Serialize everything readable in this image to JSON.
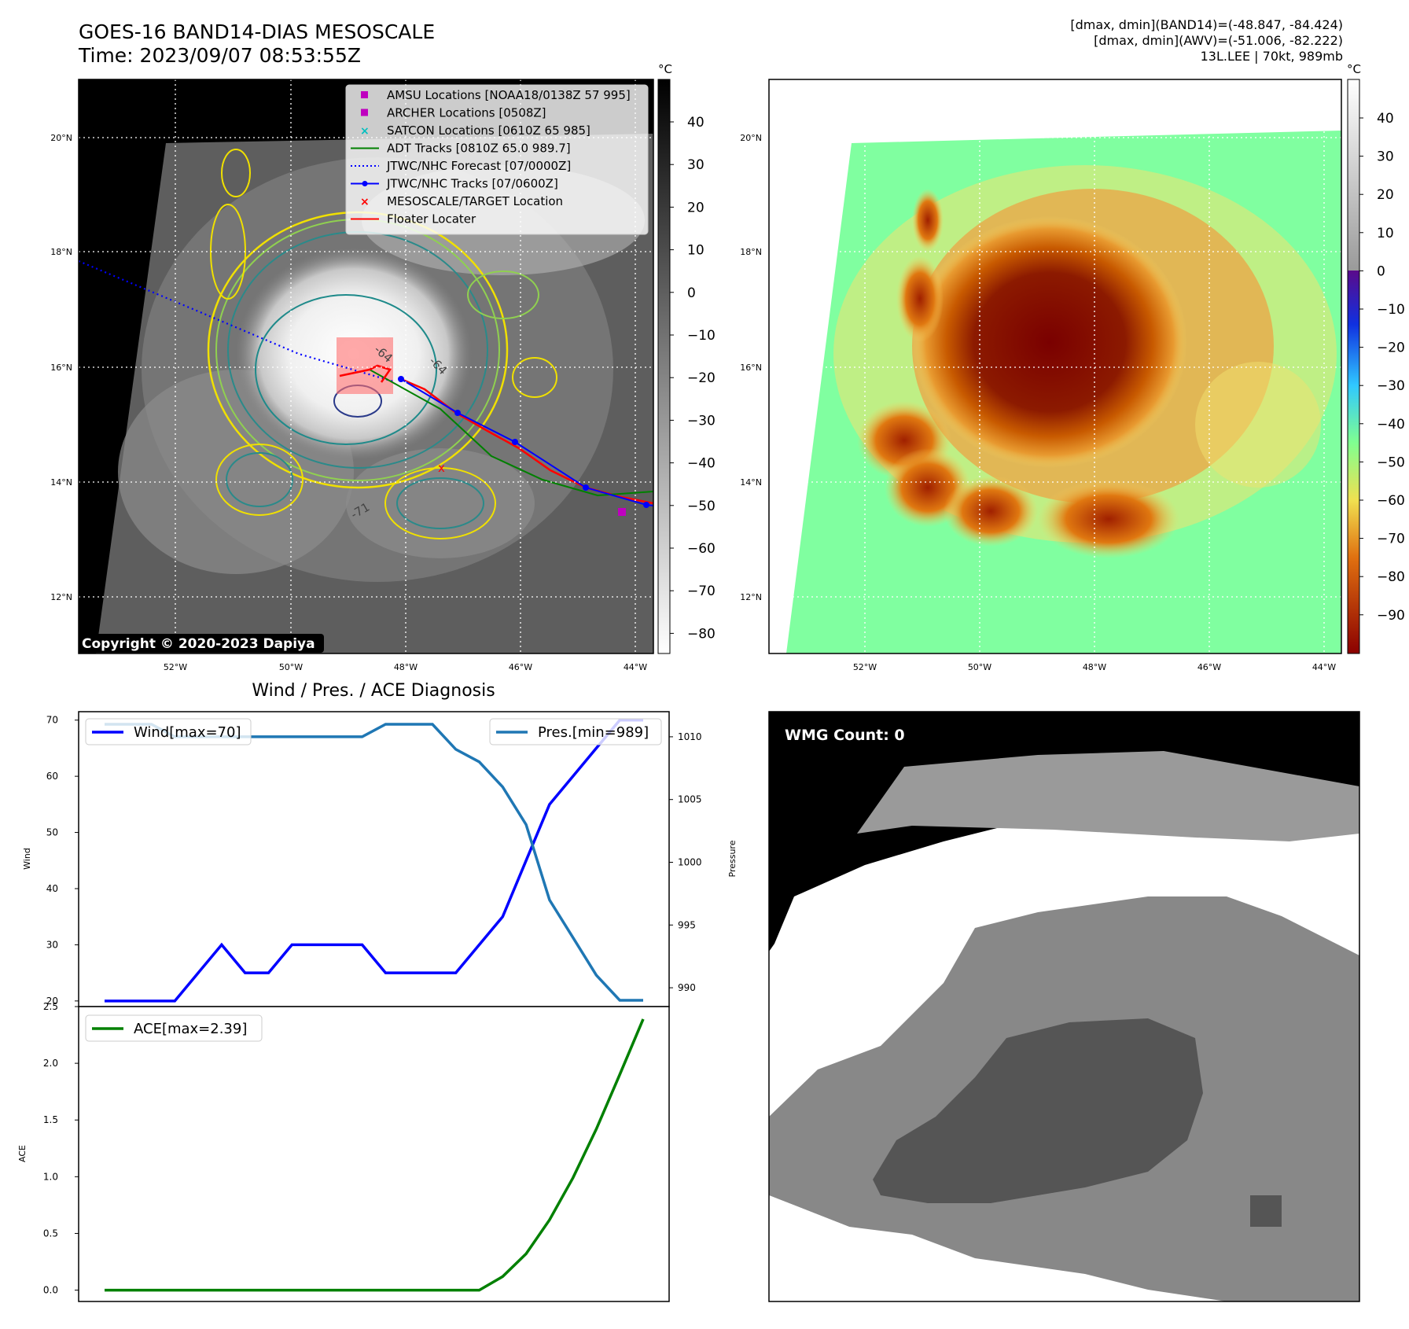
{
  "header": {
    "title_line1": "GOES-16 BAND14-DIAS MESOSCALE",
    "title_line2": "Time: 2023/09/07 08:53:55Z",
    "info_line1": "[dmax, dmin](BAND14)=(-48.847, -84.424)",
    "info_line2": "[dmax, dmin](AWV)=(-51.006, -82.222)",
    "info_line3": "13L.LEE | 70kt, 989mb"
  },
  "map": {
    "lat_labels": [
      "20°N",
      "18°N",
      "16°N",
      "14°N",
      "12°N"
    ],
    "lon_labels": [
      "52°W",
      "50°W",
      "48°W",
      "46°W",
      "44°W"
    ],
    "copyright": "Copyright © 2020-2023 Dapiya",
    "contour_labels": [
      "-64",
      "-64",
      "-71"
    ],
    "legend": [
      {
        "label": "AMSU Locations [NOAA18/0138Z 57 995]",
        "color": "#bf00bf",
        "marker": "square"
      },
      {
        "label": "ARCHER Locations [0508Z]",
        "color": "#bf00bf",
        "marker": "square"
      },
      {
        "label": "SATCON Locations [0610Z 65 985]",
        "color": "#00bfbf",
        "marker": "x"
      },
      {
        "label": "ADT Tracks [0810Z 65.0 989.7]",
        "color": "#008000",
        "marker": "line"
      },
      {
        "label": "JTWC/NHC Forecast [07/0000Z]",
        "color": "#0000ff",
        "marker": "dotted"
      },
      {
        "label": "JTWC/NHC Tracks [07/0600Z]",
        "color": "#0000ff",
        "marker": "line-dot"
      },
      {
        "label": "MESOSCALE/TARGET Location",
        "color": "#ff0000",
        "marker": "x"
      },
      {
        "label": "Floater Locater",
        "color": "#ff0000",
        "marker": "line"
      }
    ]
  },
  "colorbar_left": {
    "unit": "°C",
    "ticks": [
      "40",
      "30",
      "20",
      "10",
      "0",
      "−10",
      "−20",
      "−30",
      "−40",
      "−50",
      "−60",
      "−70",
      "−80"
    ]
  },
  "colorbar_right": {
    "unit": "°C",
    "ticks": [
      "40",
      "30",
      "20",
      "10",
      "0",
      "−10",
      "−20",
      "−30",
      "−40",
      "−50",
      "−60",
      "−70",
      "−80",
      "−90"
    ]
  },
  "wmg": {
    "label": "WMG Count: 0"
  },
  "chart_data": [
    {
      "type": "line",
      "title": "Wind / Pres. / ACE Diagnosis",
      "ylabel": "Wind",
      "ylim": [
        19,
        71.5
      ],
      "y_ticks": [
        20,
        30,
        40,
        50,
        60,
        70
      ],
      "series": [
        {
          "name": "Wind[max=70]",
          "color": "#0000ff",
          "values": [
            20,
            20,
            20,
            20,
            25,
            30,
            25,
            25,
            30,
            30,
            30,
            30,
            25,
            25,
            25,
            25,
            30,
            35,
            45,
            55,
            60,
            65,
            70,
            70
          ]
        }
      ]
    },
    {
      "type": "line",
      "ylabel": "Pressure",
      "ylim": [
        988.5,
        1012
      ],
      "y_ticks": [
        990,
        995,
        1000,
        1005,
        1010
      ],
      "series": [
        {
          "name": "Pres.[min=989]",
          "color": "#1f77b4",
          "values": [
            1011,
            1011,
            1011,
            1010,
            1010,
            1010,
            1010,
            1010,
            1010,
            1010,
            1010,
            1010,
            1011,
            1011,
            1011,
            1009,
            1008,
            1006,
            1003,
            997,
            994,
            991,
            989,
            989
          ]
        }
      ]
    },
    {
      "type": "line",
      "ylabel": "ACE",
      "ylim": [
        -0.1,
        2.5
      ],
      "y_ticks": [
        0.0,
        0.5,
        1.0,
        1.5,
        2.0,
        2.5
      ],
      "series": [
        {
          "name": "ACE[max=2.39]",
          "color": "#008000",
          "values": [
            0,
            0,
            0,
            0,
            0,
            0,
            0,
            0,
            0,
            0,
            0,
            0,
            0,
            0,
            0,
            0,
            0,
            0.12,
            0.32,
            0.62,
            0.99,
            1.42,
            1.9,
            2.39
          ]
        }
      ]
    }
  ]
}
